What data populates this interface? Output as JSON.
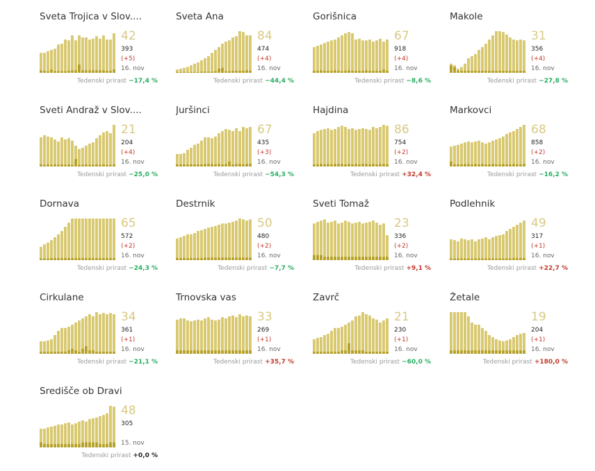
{
  "growth_label": "Tedenski prirast",
  "colors": {
    "bar_main": "#d8c86f",
    "bar_new": "#b5a127",
    "number": "#d8c981",
    "neg": "#27ae60",
    "pos": "#c0392b"
  },
  "municipalities": [
    {
      "name": "Sveta Trojica v Slov....",
      "value": "42",
      "cases": "393",
      "delta": "(+5)",
      "date": "16. nov",
      "growth": "−17,4 %",
      "growth_sign": "neg",
      "series": [
        48,
        48,
        52,
        55,
        58,
        68,
        70,
        80,
        78,
        90,
        78,
        90,
        85,
        85,
        80,
        82,
        88,
        82,
        90,
        80,
        80,
        95
      ],
      "new": [
        6,
        5,
        4,
        8,
        4,
        4,
        4,
        4,
        5,
        6,
        6,
        20,
        6,
        6,
        6,
        6,
        6,
        6,
        6,
        5,
        5,
        8
      ]
    },
    {
      "name": "Sveta Ana",
      "value": "84",
      "cases": "474",
      "delta": "(+4)",
      "date": "16. nov",
      "growth": "−44,4 %",
      "growth_sign": "neg",
      "series": [
        8,
        10,
        12,
        14,
        18,
        22,
        25,
        30,
        35,
        40,
        48,
        55,
        62,
        70,
        75,
        78,
        85,
        88,
        100,
        98,
        90,
        90
      ],
      "new": [
        2,
        2,
        2,
        2,
        2,
        2,
        2,
        3,
        3,
        3,
        3,
        4,
        10,
        12,
        4,
        4,
        5,
        5,
        5,
        5,
        6,
        5
      ]
    },
    {
      "name": "Gorišnica",
      "value": "67",
      "cases": "918",
      "delta": "(+4)",
      "date": "16. nov",
      "growth": "−8,6 %",
      "growth_sign": "neg",
      "series": [
        62,
        65,
        68,
        72,
        75,
        78,
        80,
        85,
        90,
        95,
        98,
        95,
        80,
        82,
        78,
        78,
        80,
        75,
        78,
        82,
        75,
        80
      ],
      "new": [
        5,
        5,
        6,
        5,
        5,
        5,
        6,
        5,
        4,
        5,
        6,
        5,
        5,
        5,
        5,
        6,
        5,
        5,
        5,
        5,
        8,
        5
      ]
    },
    {
      "name": "Makole",
      "value": "31",
      "cases": "356",
      "delta": "(+4)",
      "date": "16. nov",
      "growth": "−27,8 %",
      "growth_sign": "neg",
      "series": [
        22,
        18,
        10,
        14,
        22,
        35,
        40,
        45,
        55,
        62,
        70,
        80,
        90,
        100,
        100,
        98,
        92,
        85,
        80,
        78,
        80,
        78
      ],
      "new": [
        18,
        14,
        5,
        5,
        5,
        5,
        5,
        5,
        5,
        5,
        5,
        5,
        5,
        5,
        5,
        5,
        5,
        5,
        5,
        5,
        5,
        5
      ]
    },
    {
      "name": "Sveti Andraž v Slov....",
      "value": "21",
      "cases": "204",
      "delta": "(+4)",
      "date": "16. nov",
      "growth": "−25,0 %",
      "growth_sign": "neg",
      "series": [
        70,
        75,
        72,
        70,
        65,
        60,
        70,
        65,
        68,
        62,
        50,
        42,
        45,
        50,
        55,
        58,
        68,
        75,
        82,
        85,
        80,
        100
      ],
      "new": [
        5,
        4,
        5,
        4,
        5,
        4,
        5,
        4,
        5,
        4,
        18,
        4,
        4,
        5,
        4,
        4,
        5,
        4,
        5,
        4,
        4,
        5
      ]
    },
    {
      "name": "Juršinci",
      "value": "67",
      "cases": "435",
      "delta": "(+3)",
      "date": "16. nov",
      "growth": "−54,3 %",
      "growth_sign": "neg",
      "series": [
        30,
        30,
        32,
        40,
        45,
        52,
        55,
        62,
        70,
        70,
        68,
        72,
        80,
        85,
        90,
        88,
        85,
        92,
        85,
        95,
        92,
        95
      ],
      "new": [
        5,
        5,
        5,
        5,
        5,
        5,
        5,
        5,
        6,
        6,
        6,
        5,
        6,
        5,
        6,
        12,
        5,
        6,
        6,
        5,
        6,
        6
      ]
    },
    {
      "name": "Hajdina",
      "value": "86",
      "cases": "754",
      "delta": "(+2)",
      "date": "16. nov",
      "growth": "+32,4 %",
      "growth_sign": "pos",
      "series": [
        80,
        85,
        88,
        90,
        92,
        88,
        90,
        95,
        98,
        95,
        90,
        92,
        88,
        90,
        92,
        90,
        88,
        95,
        92,
        95,
        100,
        98
      ],
      "new": [
        5,
        5,
        6,
        5,
        6,
        5,
        6,
        6,
        6,
        5,
        6,
        5,
        6,
        5,
        6,
        6,
        5,
        6,
        5,
        6,
        6,
        5
      ]
    },
    {
      "name": "Markovci",
      "value": "68",
      "cases": "858",
      "delta": "(+2)",
      "date": "16. nov",
      "growth": "−16,2 %",
      "growth_sign": "neg",
      "series": [
        48,
        50,
        52,
        55,
        58,
        60,
        58,
        60,
        62,
        58,
        55,
        58,
        62,
        65,
        68,
        72,
        78,
        82,
        85,
        90,
        95,
        100
      ],
      "new": [
        12,
        5,
        5,
        5,
        6,
        6,
        5,
        6,
        5,
        6,
        5,
        5,
        6,
        5,
        5,
        6,
        5,
        5,
        6,
        5,
        5,
        6
      ]
    },
    {
      "name": "Dornava",
      "value": "65",
      "cases": "572",
      "delta": "(+2)",
      "date": "16. nov",
      "growth": "−24,3 %",
      "growth_sign": "neg",
      "series": [
        32,
        38,
        42,
        48,
        55,
        62,
        70,
        80,
        90,
        100,
        100,
        100,
        100,
        100,
        100,
        100,
        100,
        100,
        100,
        100,
        100,
        100
      ],
      "new": [
        4,
        4,
        4,
        5,
        5,
        5,
        5,
        5,
        5,
        5,
        5,
        5,
        5,
        5,
        5,
        5,
        5,
        5,
        5,
        5,
        5,
        5
      ]
    },
    {
      "name": "Destrnik",
      "value": "50",
      "cases": "480",
      "delta": "(+2)",
      "date": "16. nov",
      "growth": "−7,7 %",
      "growth_sign": "neg",
      "series": [
        52,
        55,
        58,
        62,
        62,
        65,
        70,
        72,
        75,
        78,
        80,
        82,
        85,
        88,
        88,
        90,
        92,
        95,
        100,
        98,
        95,
        98
      ],
      "new": [
        5,
        5,
        5,
        5,
        5,
        5,
        5,
        5,
        6,
        6,
        6,
        6,
        6,
        6,
        6,
        6,
        6,
        6,
        6,
        6,
        6,
        6
      ]
    },
    {
      "name": "Sveti Tomaž",
      "value": "23",
      "cases": "336",
      "delta": "(+2)",
      "date": "16. nov",
      "growth": "+9,1 %",
      "growth_sign": "pos",
      "series": [
        88,
        92,
        95,
        98,
        90,
        92,
        95,
        88,
        90,
        95,
        92,
        88,
        90,
        92,
        88,
        90,
        92,
        95,
        90,
        85,
        88,
        60
      ],
      "new": [
        12,
        12,
        12,
        8,
        8,
        8,
        8,
        8,
        8,
        8,
        8,
        8,
        8,
        8,
        8,
        8,
        8,
        8,
        8,
        8,
        8,
        8
      ]
    },
    {
      "name": "Podlehnik",
      "value": "49",
      "cases": "317",
      "delta": "(+1)",
      "date": "16. nov",
      "growth": "+22,7 %",
      "growth_sign": "pos",
      "series": [
        50,
        48,
        45,
        52,
        50,
        48,
        50,
        45,
        50,
        52,
        55,
        50,
        55,
        58,
        60,
        62,
        70,
        75,
        80,
        85,
        90,
        95
      ],
      "new": [
        4,
        4,
        4,
        4,
        4,
        4,
        4,
        4,
        4,
        4,
        4,
        4,
        4,
        4,
        4,
        4,
        4,
        4,
        5,
        5,
        5,
        5
      ]
    },
    {
      "name": "Cirkulane",
      "value": "34",
      "cases": "361",
      "delta": "(+1)",
      "date": "16. nov",
      "growth": "−21,1 %",
      "growth_sign": "neg",
      "series": [
        30,
        30,
        32,
        35,
        45,
        55,
        62,
        62,
        65,
        70,
        75,
        80,
        85,
        90,
        95,
        90,
        100,
        95,
        98,
        95,
        98,
        95
      ],
      "new": [
        5,
        5,
        5,
        5,
        5,
        5,
        5,
        5,
        8,
        12,
        8,
        5,
        12,
        18,
        8,
        8,
        5,
        5,
        5,
        5,
        5,
        5
      ]
    },
    {
      "name": "Trnovska vas",
      "value": "33",
      "cases": "269",
      "delta": "(+1)",
      "date": "16. nov",
      "growth": "+35,7 %",
      "growth_sign": "pos",
      "series": [
        82,
        85,
        85,
        80,
        78,
        80,
        82,
        80,
        85,
        88,
        82,
        80,
        82,
        88,
        85,
        90,
        92,
        88,
        95,
        90,
        92,
        90
      ],
      "new": [
        8,
        8,
        8,
        8,
        8,
        8,
        8,
        8,
        8,
        8,
        8,
        8,
        8,
        8,
        8,
        8,
        8,
        8,
        8,
        8,
        8,
        8
      ]
    },
    {
      "name": "Zavrč",
      "value": "21",
      "cases": "230",
      "delta": "(+1)",
      "date": "16. nov",
      "growth": "−60,0 %",
      "growth_sign": "neg",
      "series": [
        35,
        38,
        40,
        45,
        48,
        55,
        62,
        62,
        65,
        70,
        75,
        80,
        90,
        92,
        100,
        95,
        92,
        85,
        82,
        75,
        80,
        85
      ],
      "new": [
        5,
        5,
        5,
        5,
        5,
        5,
        5,
        5,
        8,
        8,
        25,
        8,
        8,
        8,
        8,
        5,
        5,
        5,
        5,
        5,
        5,
        5
      ]
    },
    {
      "name": "Žetale",
      "value": "19",
      "cases": "204",
      "delta": "(+1)",
      "date": "16. nov",
      "growth": "+180,0 %",
      "growth_sign": "pos",
      "series": [
        100,
        100,
        100,
        100,
        100,
        90,
        75,
        70,
        70,
        62,
        55,
        45,
        40,
        35,
        32,
        30,
        32,
        35,
        40,
        45,
        48,
        50
      ],
      "new": [
        8,
        8,
        8,
        8,
        8,
        8,
        8,
        8,
        8,
        8,
        8,
        8,
        8,
        8,
        8,
        8,
        8,
        8,
        8,
        8,
        8,
        8
      ]
    },
    {
      "name": "Središče ob Dravi",
      "value": "48",
      "cases": "305",
      "delta": "",
      "date": "15. nov",
      "growth": "+0,0 %",
      "growth_sign": "zero",
      "series": [
        45,
        45,
        48,
        50,
        52,
        55,
        55,
        58,
        60,
        55,
        58,
        62,
        65,
        62,
        68,
        70,
        72,
        75,
        78,
        82,
        100,
        98
      ],
      "new": [
        12,
        8,
        8,
        8,
        8,
        8,
        8,
        8,
        8,
        8,
        8,
        8,
        12,
        12,
        12,
        12,
        12,
        8,
        8,
        8,
        12,
        12
      ]
    }
  ],
  "chart_data": {
    "type": "bar",
    "title": "",
    "note": "Small multiples per municipality (relative daily bar heights, 0-100 scale)",
    "xlabel": "",
    "ylabel": ""
  }
}
